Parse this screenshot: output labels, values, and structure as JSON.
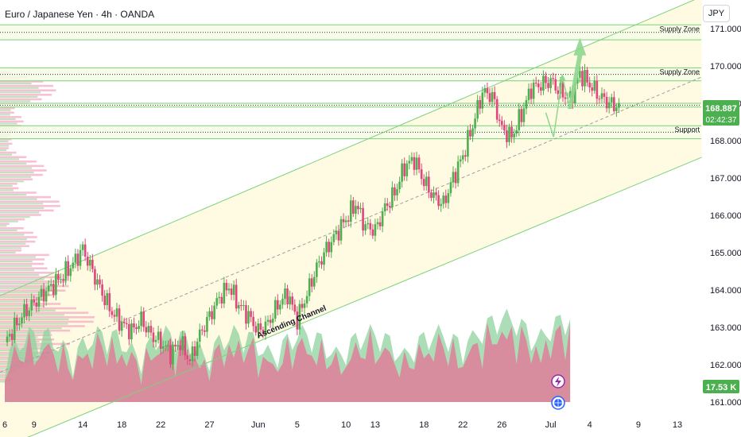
{
  "header": {
    "title": "Euro / Japanese Yen · 4h · OANDA"
  },
  "currency_label": "JPY",
  "price_badge": {
    "price": "168.887",
    "countdown": "02:42:37",
    "color": "#4caf50"
  },
  "volume_badge": {
    "value": "17.53 K",
    "color": "#4caf50"
  },
  "icons": [
    "lightning-icon",
    "globe-icon"
  ],
  "colors": {
    "up": "#4caf50",
    "down": "#e0457b",
    "channel": "#7bd17b",
    "zone_fill": "#fffbe0",
    "arrow": "#8fd68f"
  },
  "chart_data": {
    "type": "candlestick",
    "title": "Euro / Japanese Yen · 4h · OANDA",
    "y_ticks": [
      161,
      162,
      163,
      164,
      165,
      166,
      167,
      168,
      169,
      170,
      171
    ],
    "y_tick_labels": [
      "161.000",
      "162.000",
      "163.000",
      "164.000",
      "165.000",
      "166.000",
      "167.000",
      "168.000",
      "169.000",
      "170.000",
      "171.000"
    ],
    "ylim": [
      160.8,
      171.3
    ],
    "x_tick_labels": [
      "6",
      "9",
      "14",
      "18",
      "22",
      "27",
      "Jun",
      "5",
      "10",
      "13",
      "18",
      "22",
      "26",
      "Jul",
      "4",
      "9",
      "13"
    ],
    "x_ticks": [
      0,
      3,
      8,
      12,
      16,
      21,
      26,
      30,
      35,
      38,
      43,
      47,
      51,
      56,
      60,
      65,
      69
    ],
    "xlim": [
      0,
      71
    ],
    "zones": [
      {
        "label": "Supply Zone",
        "low": 170.7,
        "high": 171.1
      },
      {
        "label": "Supply Zone",
        "low": 169.6,
        "high": 169.95
      },
      {
        "label": "",
        "low": 168.9,
        "high": 169.0
      },
      {
        "label": "Support",
        "low": 168.05,
        "high": 168.4
      }
    ],
    "channel": {
      "label": "Ascending Channel",
      "upper": [
        [
          0,
          163.9
        ],
        [
          71,
          171.8
        ]
      ],
      "lower": [
        [
          0,
          159.8
        ],
        [
          71,
          167.5
        ]
      ],
      "mid": [
        [
          0,
          161.85
        ],
        [
          71,
          169.65
        ]
      ]
    },
    "forecast_arrow": [
      [
        55.5,
        168.75
      ],
      [
        56.3,
        168.1
      ],
      [
        57.2,
        169.7
      ],
      [
        58.0,
        168.85
      ],
      [
        59.0,
        170.8
      ]
    ],
    "price_series": [
      [
        0,
        162.6
      ],
      [
        2,
        163.4
      ],
      [
        4,
        163.9
      ],
      [
        6,
        164.4
      ],
      [
        7,
        164.7
      ],
      [
        8,
        165.1
      ],
      [
        9,
        164.5
      ],
      [
        10,
        163.9
      ],
      [
        11,
        163.4
      ],
      [
        12,
        163.1
      ],
      [
        13,
        162.9
      ],
      [
        14,
        163.2
      ],
      [
        15,
        162.8
      ],
      [
        16,
        162.6
      ],
      [
        17,
        162.3
      ],
      [
        18,
        162.6
      ],
      [
        19,
        162.1
      ],
      [
        20,
        162.8
      ],
      [
        21,
        163.3
      ],
      [
        22,
        163.8
      ],
      [
        23,
        164.1
      ],
      [
        24,
        163.6
      ],
      [
        25,
        163.3
      ],
      [
        26,
        162.9
      ],
      [
        27,
        163.1
      ],
      [
        28,
        163.6
      ],
      [
        29,
        163.9
      ],
      [
        30,
        163.2
      ],
      [
        31,
        163.9
      ],
      [
        32,
        164.6
      ],
      [
        33,
        165.1
      ],
      [
        34,
        165.5
      ],
      [
        35,
        165.9
      ],
      [
        36,
        166.3
      ],
      [
        37,
        165.7
      ],
      [
        38,
        165.6
      ],
      [
        39,
        166.2
      ],
      [
        40,
        166.6
      ],
      [
        41,
        167.3
      ],
      [
        42,
        167.5
      ],
      [
        43,
        166.9
      ],
      [
        44,
        166.5
      ],
      [
        45,
        166.3
      ],
      [
        46,
        167.0
      ],
      [
        47,
        167.6
      ],
      [
        48,
        168.4
      ],
      [
        49,
        169.3
      ],
      [
        50,
        169.2
      ],
      [
        51,
        168.3
      ],
      [
        52,
        168.1
      ],
      [
        53,
        168.7
      ],
      [
        54,
        169.4
      ],
      [
        55,
        169.5
      ],
      [
        56,
        169.6
      ],
      [
        57,
        169.3
      ],
      [
        58,
        169.1
      ],
      [
        59,
        169.8
      ],
      [
        60,
        169.5
      ],
      [
        61,
        169.2
      ],
      [
        62,
        169.0
      ],
      [
        63,
        168.9
      ]
    ],
    "volume": {
      "value": "17.53 K"
    }
  }
}
